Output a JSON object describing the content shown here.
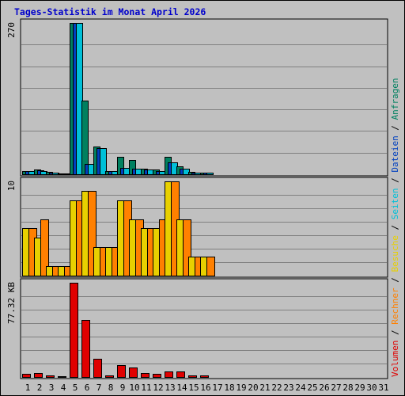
{
  "chart_data": {
    "type": "bar",
    "title": "Tages-Statistik im Monat April 2026",
    "categories": [
      "1",
      "2",
      "3",
      "4",
      "5",
      "6",
      "7",
      "8",
      "9",
      "10",
      "11",
      "12",
      "13",
      "14",
      "15",
      "16",
      "17",
      "18",
      "19",
      "20",
      "21",
      "22",
      "23",
      "24",
      "25",
      "26",
      "27",
      "28",
      "29",
      "30",
      "31"
    ],
    "weekend_days": [
      "4",
      "5",
      "11",
      "12",
      "18",
      "19",
      "25",
      "26"
    ],
    "grid": true,
    "right_legend": [
      {
        "text": "Volumen",
        "color": "#e00000",
        "panel": "volumen"
      },
      {
        "text": " / ",
        "color": "#000000",
        "panel": "volumen"
      },
      {
        "text": "Rechner",
        "color": "#ff8000",
        "panel": "rechner"
      },
      {
        "text": " / ",
        "color": "#000000",
        "panel": "rechner"
      },
      {
        "text": "Besuche",
        "color": "#e8d000",
        "panel": "besuche"
      },
      {
        "text": " / ",
        "color": "#000000",
        "panel": "besuche"
      },
      {
        "text": "Seiten",
        "color": "#00c0d8",
        "panel": "seiten"
      },
      {
        "text": " / ",
        "color": "#000000",
        "panel": "seiten"
      },
      {
        "text": "Dateien",
        "color": "#0040c0",
        "panel": "dateien"
      },
      {
        "text": " / ",
        "color": "#000000",
        "panel": "dateien"
      },
      {
        "text": "Anfragen",
        "color": "#008060",
        "panel": "anfragen"
      }
    ],
    "panels": [
      {
        "id": "requests",
        "ylabel": "270",
        "ylim": [
          0,
          270
        ],
        "series": [
          {
            "name": "Anfragen",
            "color": "#008060",
            "values": [
              6,
              9,
              4,
              2,
              270,
              132,
              49,
              5,
              31,
              26,
              10,
              9,
              31,
              14,
              4,
              3,
              0,
              0,
              0,
              0,
              0,
              0,
              0,
              0,
              0,
              0,
              0,
              0,
              0,
              0,
              0
            ]
          },
          {
            "name": "Dateien",
            "color": "#0040c0",
            "values": [
              6,
              7,
              3,
              2,
              270,
              18,
              47,
              5,
              11,
              10,
              9,
              6,
              21,
              10,
              3,
              3,
              0,
              0,
              0,
              0,
              0,
              0,
              0,
              0,
              0,
              0,
              0,
              0,
              0,
              0,
              0
            ]
          },
          {
            "name": "Seiten",
            "color": "#00c0d8",
            "values": [
              6,
              6,
              3,
              2,
              270,
              18,
              47,
              5,
              11,
              10,
              9,
              6,
              21,
              10,
              3,
              3,
              0,
              0,
              0,
              0,
              0,
              0,
              0,
              0,
              0,
              0,
              0,
              0,
              0,
              0,
              0
            ]
          }
        ]
      },
      {
        "id": "visits",
        "ylabel": "10",
        "ylim": [
          0,
          10
        ],
        "series": [
          {
            "name": "Besuche",
            "color": "#e8d000",
            "values": [
              5,
              4,
              1,
              1,
              8,
              9,
              3,
              3,
              8,
              6,
              5,
              5,
              10,
              6,
              2,
              2,
              0,
              0,
              0,
              0,
              0,
              0,
              0,
              0,
              0,
              0,
              0,
              0,
              0,
              0,
              0
            ]
          },
          {
            "name": "Rechner",
            "color": "#ff8000",
            "values": [
              5,
              6,
              1,
              1,
              8,
              9,
              3,
              3,
              8,
              6,
              5,
              6,
              10,
              6,
              2,
              2,
              0,
              0,
              0,
              0,
              0,
              0,
              0,
              0,
              0,
              0,
              0,
              0,
              0,
              0,
              0
            ]
          }
        ]
      },
      {
        "id": "volume",
        "ylabel": "77.32 KB",
        "ylim": [
          0,
          77.32
        ],
        "series": [
          {
            "name": "Volumen",
            "color": "#e00000",
            "values": [
              2.5,
              3,
              1,
              0.5,
              77.32,
              47,
              15,
              1.5,
              10,
              8,
              3,
              2.5,
              4.5,
              4.5,
              1,
              1,
              0,
              0,
              0,
              0,
              0,
              0,
              0,
              0,
              0,
              0,
              0,
              0,
              0,
              0,
              0
            ]
          }
        ]
      }
    ]
  }
}
